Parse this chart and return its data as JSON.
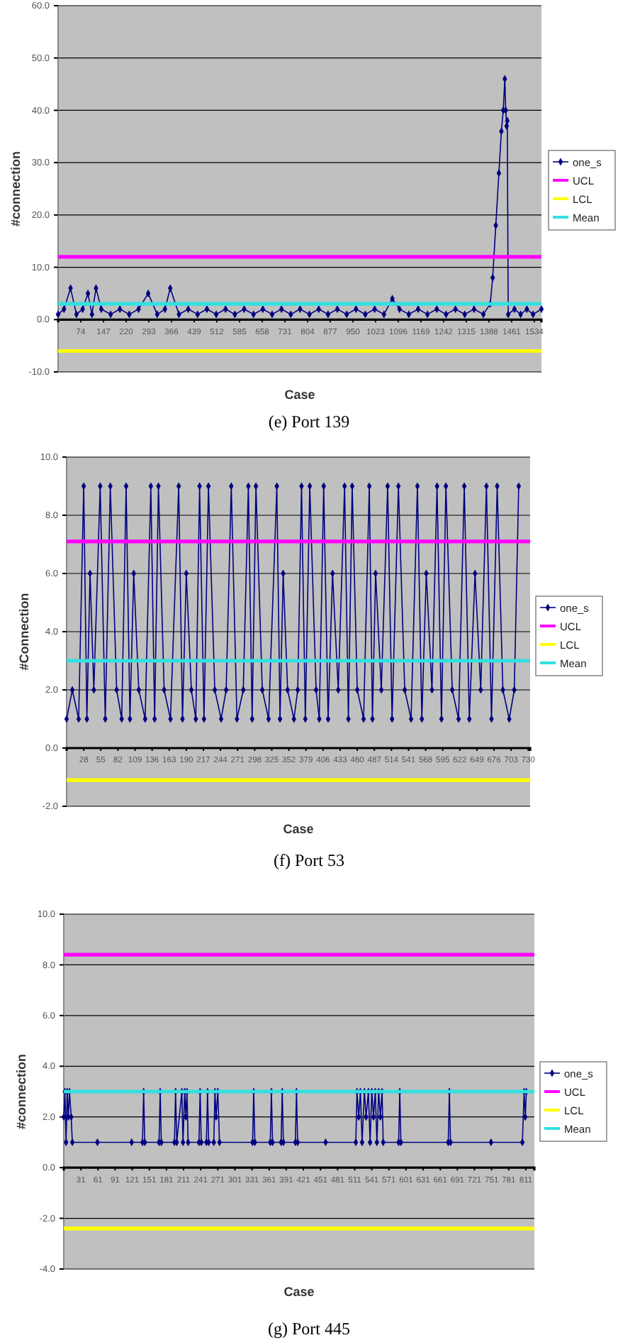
{
  "chart_data": [
    {
      "type": "line",
      "title": "(e) Port 139",
      "xlabel": "Case",
      "ylabel": "#connection",
      "legend": "right",
      "grid": "y",
      "xlim": [
        1,
        1557
      ],
      "xticks": [
        74,
        147,
        220,
        293,
        366,
        439,
        512,
        585,
        658,
        731,
        804,
        877,
        950,
        1023,
        1096,
        1169,
        1242,
        1315,
        1388,
        1461,
        1534
      ],
      "ylim": [
        -10,
        60
      ],
      "yticks": [
        {
          "value": -10,
          "label": "-10.0"
        },
        {
          "value": 0,
          "label": "0.0"
        },
        {
          "value": 10,
          "label": "10.0"
        },
        {
          "value": 20,
          "label": "20.0"
        },
        {
          "value": 30,
          "label": "30.0"
        },
        {
          "value": 40,
          "label": "40.0"
        },
        {
          "value": 50,
          "label": "50.0"
        },
        {
          "value": 60,
          "label": "60.0"
        }
      ],
      "series": [
        {
          "name": "one_s",
          "color": "#000080",
          "marker": "diamond",
          "x": [
            1,
            20,
            41,
            60,
            80,
            97,
            110,
            123,
            140,
            170,
            200,
            230,
            260,
            291,
            320,
            345,
            362,
            390,
            420,
            450,
            480,
            510,
            540,
            570,
            600,
            630,
            660,
            690,
            720,
            750,
            780,
            810,
            840,
            870,
            900,
            930,
            960,
            990,
            1020,
            1050,
            1077,
            1100,
            1130,
            1160,
            1190,
            1220,
            1250,
            1280,
            1310,
            1340,
            1370,
            1392,
            1400,
            1410,
            1420,
            1428,
            1434,
            1439,
            1442,
            1445,
            1447,
            1450,
            1470,
            1490,
            1510,
            1530,
            1557
          ],
          "values": [
            1,
            2,
            6,
            1,
            2,
            5,
            1,
            6,
            2,
            1,
            2,
            1,
            2,
            5,
            1,
            2,
            6,
            1,
            2,
            1,
            2,
            1,
            2,
            1,
            2,
            1,
            2,
            1,
            2,
            1,
            2,
            1,
            2,
            1,
            2,
            1,
            2,
            1,
            2,
            1,
            4,
            2,
            1,
            2,
            1,
            2,
            1,
            2,
            1,
            2,
            1,
            3,
            8,
            18,
            28,
            36,
            40,
            46,
            40,
            37,
            38,
            1,
            2,
            1,
            2,
            1,
            2
          ]
        },
        {
          "name": "UCL",
          "color": "#ff00ff",
          "x": [
            1,
            1557
          ],
          "values": [
            12,
            12
          ]
        },
        {
          "name": "LCL",
          "color": "#ffff00",
          "x": [
            1,
            1557
          ],
          "values": [
            -6,
            -6
          ]
        },
        {
          "name": "Mean",
          "color": "#33e0e0",
          "x": [
            1,
            1557
          ],
          "values": [
            3,
            3
          ]
        }
      ]
    },
    {
      "type": "line",
      "title": "(f) Port 53",
      "xlabel": "Case",
      "ylabel": "#Connection",
      "legend": "right",
      "grid": "y",
      "xlim": [
        1,
        733
      ],
      "xticks": [
        28,
        55,
        82,
        109,
        136,
        163,
        190,
        217,
        244,
        271,
        298,
        325,
        352,
        379,
        406,
        433,
        460,
        487,
        514,
        541,
        568,
        595,
        622,
        649,
        676,
        703,
        730
      ],
      "ylim": [
        -2,
        10
      ],
      "yticks": [
        {
          "value": -2,
          "label": "-2.0"
        },
        {
          "value": 0,
          "label": "0.0"
        },
        {
          "value": 2,
          "label": "2.0"
        },
        {
          "value": 4,
          "label": "4.0"
        },
        {
          "value": 6,
          "label": "6.0"
        },
        {
          "value": 8,
          "label": "8.0"
        },
        {
          "value": 10,
          "label": "10.0"
        }
      ],
      "series": [
        {
          "name": "one_s",
          "color": "#000080",
          "marker": "diamond",
          "x": [
            1,
            10,
            20,
            28,
            33,
            38,
            44,
            54,
            62,
            70,
            80,
            88,
            95,
            101,
            107,
            115,
            125,
            134,
            140,
            146,
            155,
            165,
            178,
            184,
            190,
            198,
            205,
            211,
            218,
            225,
            235,
            245,
            253,
            261,
            270,
            280,
            288,
            294,
            300,
            310,
            320,
            333,
            338,
            343,
            350,
            360,
            366,
            372,
            378,
            385,
            395,
            400,
            407,
            414,
            421,
            430,
            440,
            446,
            452,
            460,
            470,
            479,
            484,
            489,
            498,
            508,
            515,
            525,
            535,
            545,
            555,
            562,
            569,
            578,
            586,
            593,
            600,
            610,
            620,
            629,
            637,
            646,
            655,
            664,
            672,
            681,
            690,
            700,
            708,
            715
          ],
          "values": [
            1,
            2,
            1,
            9,
            1,
            6,
            2,
            9,
            1,
            9,
            2,
            1,
            9,
            1,
            6,
            2,
            1,
            9,
            1,
            9,
            2,
            1,
            9,
            1,
            6,
            2,
            1,
            9,
            1,
            9,
            2,
            1,
            2,
            9,
            1,
            2,
            9,
            1,
            9,
            2,
            1,
            9,
            1,
            6,
            2,
            1,
            2,
            9,
            1,
            9,
            2,
            1,
            9,
            1,
            6,
            2,
            9,
            1,
            9,
            2,
            1,
            9,
            1,
            6,
            2,
            9,
            1,
            9,
            2,
            1,
            9,
            1,
            6,
            2,
            9,
            1,
            9,
            2,
            1,
            9,
            1,
            6,
            2,
            9,
            1,
            9,
            2,
            1,
            2,
            9
          ]
        },
        {
          "name": "UCL",
          "color": "#ff00ff",
          "x": [
            1,
            733
          ],
          "values": [
            7.1,
            7.1
          ]
        },
        {
          "name": "LCL",
          "color": "#ffff00",
          "x": [
            1,
            733
          ],
          "values": [
            -1.1,
            -1.1
          ]
        },
        {
          "name": "Mean",
          "color": "#33e0e0",
          "x": [
            1,
            733
          ],
          "values": [
            3,
            3
          ]
        }
      ]
    },
    {
      "type": "line",
      "title": "(g) Port 445",
      "xlabel": "Case",
      "ylabel": "#connection",
      "legend": "right",
      "grid": "y",
      "xlim": [
        1,
        826
      ],
      "xticks": [
        31,
        61,
        91,
        121,
        151,
        181,
        211,
        241,
        271,
        301,
        331,
        361,
        391,
        421,
        451,
        481,
        511,
        541,
        571,
        601,
        631,
        661,
        691,
        721,
        751,
        781,
        811
      ],
      "ylim": [
        -4,
        10
      ],
      "yticks": [
        {
          "value": -4,
          "label": "-4.0"
        },
        {
          "value": -2,
          "label": "-2.0"
        },
        {
          "value": 0,
          "label": "0.0"
        },
        {
          "value": 2,
          "label": "2.0"
        },
        {
          "value": 4,
          "label": "4.0"
        },
        {
          "value": 6,
          "label": "6.0"
        },
        {
          "value": 8,
          "label": "8.0"
        },
        {
          "value": 10,
          "label": "10.0"
        }
      ],
      "series": [
        {
          "name": "one_s",
          "color": "#000080",
          "marker": "diamond",
          "x": [
            1,
            3,
            5,
            7,
            9,
            11,
            14,
            16,
            60,
            120,
            139,
            141,
            143,
            168,
            170,
            172,
            195,
            197,
            199,
            208,
            210,
            213,
            215,
            217,
            219,
            238,
            240,
            242,
            251,
            253,
            255,
            264,
            266,
            268,
            271,
            274,
            332,
            334,
            336,
            363,
            365,
            367,
            382,
            384,
            386,
            407,
            409,
            411,
            460,
            513,
            515,
            518,
            521,
            524,
            528,
            531,
            535,
            538,
            541,
            544,
            547,
            550,
            553,
            556,
            559,
            561,
            588,
            590,
            592,
            675,
            677,
            679,
            750,
            805,
            808,
            810,
            812
          ],
          "values": [
            2,
            3,
            1,
            3,
            2,
            3,
            2,
            1,
            1,
            1,
            1,
            3,
            1,
            1,
            3,
            1,
            1,
            3,
            1,
            3,
            1,
            3,
            2,
            3,
            1,
            1,
            3,
            1,
            1,
            3,
            1,
            1,
            3,
            2,
            3,
            1,
            1,
            3,
            1,
            1,
            3,
            1,
            1,
            3,
            1,
            1,
            3,
            1,
            1,
            1,
            3,
            2,
            3,
            1,
            3,
            2,
            3,
            1,
            3,
            2,
            3,
            1,
            3,
            2,
            3,
            1,
            1,
            3,
            1,
            1,
            3,
            1,
            1,
            1,
            3,
            2,
            3
          ]
        },
        {
          "name": "UCL",
          "color": "#ff00ff",
          "x": [
            1,
            826
          ],
          "values": [
            8.4,
            8.4
          ]
        },
        {
          "name": "LCL",
          "color": "#ffff00",
          "x": [
            1,
            826
          ],
          "values": [
            -2.4,
            -2.4
          ]
        },
        {
          "name": "Mean",
          "color": "#33e0e0",
          "x": [
            1,
            826
          ],
          "values": [
            3,
            3
          ]
        }
      ]
    }
  ]
}
